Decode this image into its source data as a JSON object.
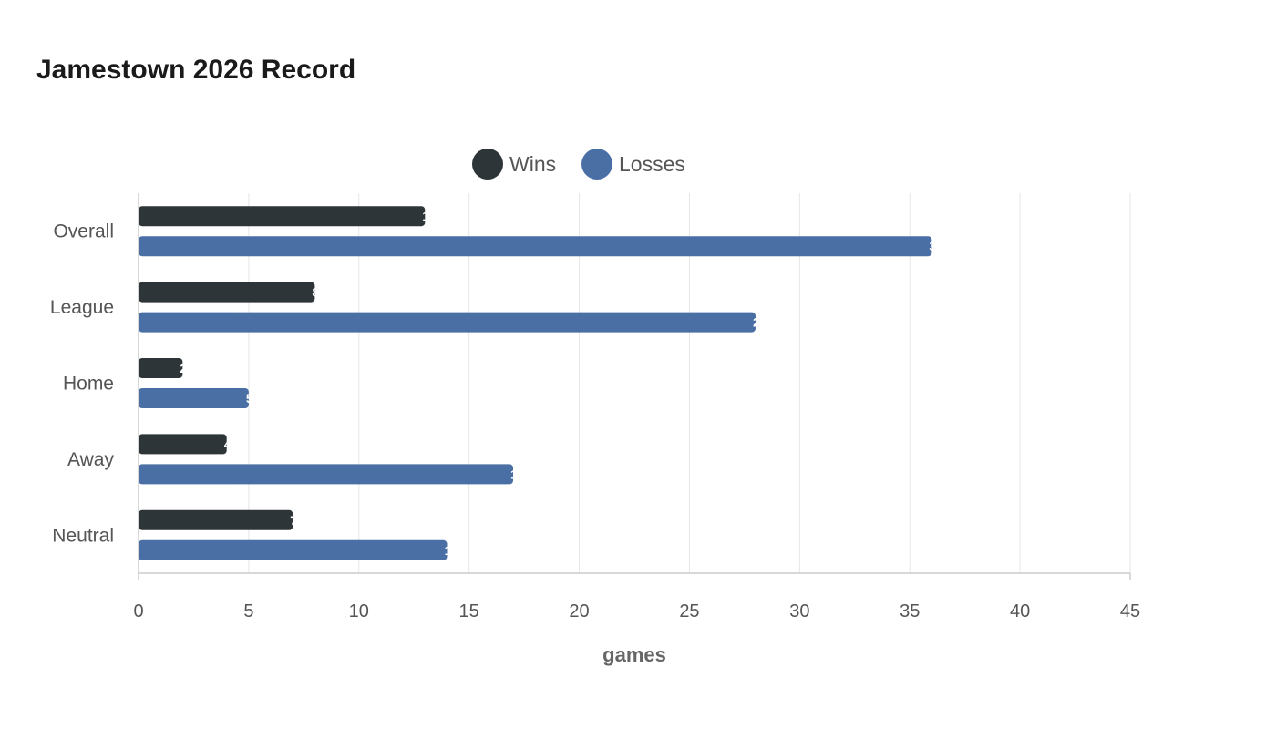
{
  "chart_data": {
    "type": "bar",
    "orientation": "horizontal",
    "title": "Jamestown 2026 Record",
    "xlabel": "games",
    "ylabel": "",
    "categories": [
      "Overall",
      "League",
      "Home",
      "Away",
      "Neutral"
    ],
    "series": [
      {
        "name": "Wins",
        "color": "#2e3538",
        "values": [
          13,
          8,
          2,
          4,
          7
        ]
      },
      {
        "name": "Losses",
        "color": "#4a6fa5",
        "values": [
          36,
          28,
          5,
          17,
          14
        ]
      }
    ],
    "xlim": [
      0,
      45
    ],
    "xticks": [
      "0",
      "5",
      "10",
      "15",
      "20",
      "25",
      "30",
      "35",
      "40",
      "45"
    ],
    "grid": true,
    "legend_position": "top-center"
  }
}
